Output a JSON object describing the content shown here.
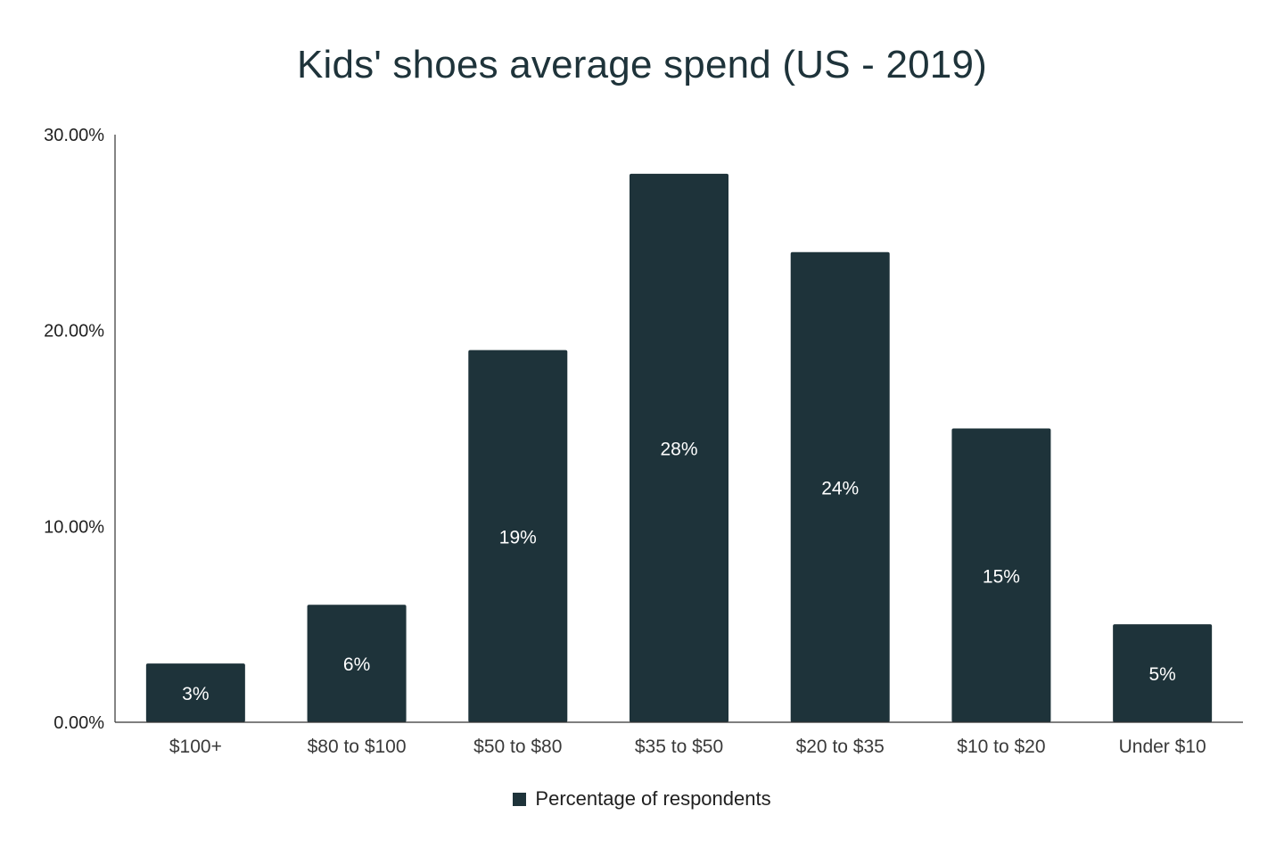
{
  "chart_data": {
    "type": "bar",
    "title": "Kids' shoes average spend (US - 2019)",
    "xlabel": "",
    "ylabel": "",
    "categories": [
      "$100+",
      "$80 to $100",
      "$50 to $80",
      "$35 to $50",
      "$20 to $35",
      "$10 to $20",
      "Under $10"
    ],
    "series": [
      {
        "name": "Percentage of respondents",
        "values": [
          3,
          6,
          19,
          28,
          24,
          15,
          5
        ],
        "data_labels": [
          "3%",
          "6%",
          "19%",
          "28%",
          "24%",
          "15%",
          "5%"
        ],
        "color": "#1e333a"
      }
    ],
    "ylim": [
      0,
      30
    ],
    "yticks": [
      0,
      10,
      20,
      30
    ],
    "ytick_labels": [
      "0.00%",
      "10.00%",
      "20.00%",
      "30.00%"
    ],
    "grid": false,
    "legend_position": "bottom"
  }
}
